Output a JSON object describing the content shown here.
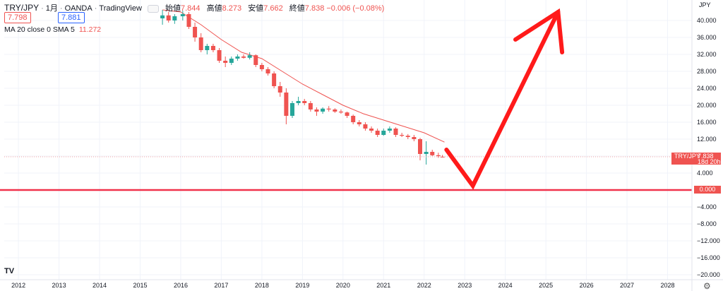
{
  "header": {
    "symbol": "TRY/JPY",
    "interval": "1月",
    "source": "OANDA",
    "platform": "TradingView",
    "open_label": "始値",
    "open_value": "7.844",
    "high_label": "高値",
    "high_value": "8.273",
    "low_label": "安値",
    "low_value": "7.662",
    "close_label": "終値",
    "close_value": "7.838",
    "change": "−0.006 (−0.08%)"
  },
  "quote": {
    "sell": "7.798",
    "buy": "7.881"
  },
  "indicator": {
    "label": "MA 20 close 0 SMA 5",
    "value": "11.272"
  },
  "current_tag": {
    "symbol": "TRY/JPY",
    "price": "7.838",
    "countdown": "18d 20h"
  },
  "zero_tag": "0.000",
  "logo_text": "TV",
  "colors": {
    "up": "#26a69a",
    "down": "#ef5350",
    "ma": "#ef5350",
    "arrow": "#ff1a1a",
    "zero": "#f0324b"
  },
  "chart_data": {
    "type": "candlestick",
    "unit": "JPY",
    "ylim": [
      -21,
      44
    ],
    "y_ticks": [
      40,
      36,
      32,
      28,
      24,
      20,
      16,
      12,
      8,
      4,
      0,
      -4,
      -8,
      -12,
      -16,
      -20
    ],
    "y_tick_labels": [
      "40.000",
      "36.000",
      "32.000",
      "28.000",
      "24.000",
      "20.000",
      "16.000",
      "12.000",
      "8.000",
      "4.000",
      "0.000",
      "−4.000",
      "−8.000",
      "−12.000",
      "−16.000",
      "−20.000"
    ],
    "xlim": [
      2011.65,
      2028.6
    ],
    "x_ticks": [
      2012,
      2013,
      2014,
      2015,
      2016,
      2017,
      2018,
      2019,
      2020,
      2021,
      2022,
      2023,
      2024,
      2025,
      2026,
      2027,
      2028
    ],
    "x_tick_labels": [
      "2012",
      "2013",
      "2014",
      "2015",
      "2016",
      "2017",
      "2018",
      "2019",
      "2020",
      "2021",
      "2022",
      "2023",
      "2024",
      "2025",
      "2026",
      "2027",
      "2028"
    ],
    "price_line": 7.838,
    "zero_line": 0,
    "ma_line": [
      [
        2015.55,
        42.5
      ],
      [
        2016.0,
        42.0
      ],
      [
        2016.5,
        39.0
      ],
      [
        2017.0,
        35.5
      ],
      [
        2017.5,
        32.5
      ],
      [
        2018.0,
        31.0
      ],
      [
        2018.5,
        28.0
      ],
      [
        2019.0,
        25.0
      ],
      [
        2019.5,
        22.5
      ],
      [
        2020.0,
        20.0
      ],
      [
        2020.5,
        18.0
      ],
      [
        2021.0,
        16.5
      ],
      [
        2021.5,
        15.0
      ],
      [
        2022.0,
        13.5
      ],
      [
        2022.5,
        11.3
      ]
    ],
    "arrow": [
      [
        2022.55,
        9.5
      ],
      [
        2023.2,
        1.0
      ],
      [
        2025.3,
        42.0
      ],
      [
        2025.4,
        32.5
      ]
    ],
    "candles": [
      {
        "t": 2015.55,
        "o": 40.5,
        "h": 42.5,
        "l": 39.0,
        "c": 41.2
      },
      {
        "t": 2015.7,
        "o": 41.2,
        "h": 42.0,
        "l": 39.5,
        "c": 40.0
      },
      {
        "t": 2015.85,
        "o": 40.0,
        "h": 41.5,
        "l": 39.2,
        "c": 41.0
      },
      {
        "t": 2016.05,
        "o": 41.0,
        "h": 42.3,
        "l": 40.0,
        "c": 41.5
      },
      {
        "t": 2016.2,
        "o": 41.5,
        "h": 42.0,
        "l": 38.0,
        "c": 38.5
      },
      {
        "t": 2016.35,
        "o": 38.5,
        "h": 39.5,
        "l": 35.0,
        "c": 36.0
      },
      {
        "t": 2016.5,
        "o": 36.0,
        "h": 37.0,
        "l": 32.5,
        "c": 33.0
      },
      {
        "t": 2016.65,
        "o": 33.0,
        "h": 34.5,
        "l": 32.0,
        "c": 34.0
      },
      {
        "t": 2016.8,
        "o": 34.0,
        "h": 34.5,
        "l": 32.5,
        "c": 33.0
      },
      {
        "t": 2016.95,
        "o": 33.0,
        "h": 33.5,
        "l": 30.0,
        "c": 30.5
      },
      {
        "t": 2017.1,
        "o": 30.5,
        "h": 31.5,
        "l": 29.0,
        "c": 30.0
      },
      {
        "t": 2017.25,
        "o": 30.0,
        "h": 31.5,
        "l": 29.5,
        "c": 31.0
      },
      {
        "t": 2017.4,
        "o": 31.0,
        "h": 32.0,
        "l": 30.5,
        "c": 31.5
      },
      {
        "t": 2017.55,
        "o": 31.5,
        "h": 32.0,
        "l": 31.0,
        "c": 31.2
      },
      {
        "t": 2017.7,
        "o": 31.2,
        "h": 32.5,
        "l": 30.8,
        "c": 31.8
      },
      {
        "t": 2017.85,
        "o": 31.8,
        "h": 32.0,
        "l": 29.0,
        "c": 29.5
      },
      {
        "t": 2018.0,
        "o": 29.5,
        "h": 30.0,
        "l": 28.0,
        "c": 28.5
      },
      {
        "t": 2018.15,
        "o": 28.5,
        "h": 29.0,
        "l": 27.0,
        "c": 27.5
      },
      {
        "t": 2018.3,
        "o": 27.5,
        "h": 28.0,
        "l": 24.0,
        "c": 24.5
      },
      {
        "t": 2018.45,
        "o": 24.5,
        "h": 25.5,
        "l": 22.0,
        "c": 23.0
      },
      {
        "t": 2018.6,
        "o": 23.0,
        "h": 24.0,
        "l": 15.5,
        "c": 17.5
      },
      {
        "t": 2018.75,
        "o": 17.5,
        "h": 21.0,
        "l": 17.0,
        "c": 20.5
      },
      {
        "t": 2018.9,
        "o": 20.5,
        "h": 22.0,
        "l": 20.0,
        "c": 21.0
      },
      {
        "t": 2019.05,
        "o": 21.0,
        "h": 21.5,
        "l": 20.0,
        "c": 20.5
      },
      {
        "t": 2019.2,
        "o": 20.5,
        "h": 21.0,
        "l": 18.5,
        "c": 19.0
      },
      {
        "t": 2019.35,
        "o": 19.0,
        "h": 19.5,
        "l": 17.5,
        "c": 18.5
      },
      {
        "t": 2019.5,
        "o": 18.5,
        "h": 19.5,
        "l": 18.0,
        "c": 19.2
      },
      {
        "t": 2019.65,
        "o": 19.2,
        "h": 19.8,
        "l": 18.5,
        "c": 19.0
      },
      {
        "t": 2019.8,
        "o": 19.0,
        "h": 19.3,
        "l": 18.2,
        "c": 18.5
      },
      {
        "t": 2019.95,
        "o": 18.5,
        "h": 19.0,
        "l": 18.0,
        "c": 18.3
      },
      {
        "t": 2020.1,
        "o": 18.3,
        "h": 18.5,
        "l": 17.0,
        "c": 17.5
      },
      {
        "t": 2020.25,
        "o": 17.5,
        "h": 17.8,
        "l": 15.5,
        "c": 16.0
      },
      {
        "t": 2020.4,
        "o": 16.0,
        "h": 16.5,
        "l": 15.0,
        "c": 15.5
      },
      {
        "t": 2020.55,
        "o": 15.5,
        "h": 16.0,
        "l": 14.0,
        "c": 14.5
      },
      {
        "t": 2020.7,
        "o": 14.5,
        "h": 15.0,
        "l": 13.5,
        "c": 14.0
      },
      {
        "t": 2020.85,
        "o": 14.0,
        "h": 14.5,
        "l": 12.5,
        "c": 13.0
      },
      {
        "t": 2021.0,
        "o": 13.0,
        "h": 14.5,
        "l": 12.8,
        "c": 14.0
      },
      {
        "t": 2021.15,
        "o": 14.0,
        "h": 15.0,
        "l": 13.5,
        "c": 14.5
      },
      {
        "t": 2021.3,
        "o": 14.5,
        "h": 14.8,
        "l": 12.5,
        "c": 13.0
      },
      {
        "t": 2021.45,
        "o": 13.0,
        "h": 13.5,
        "l": 12.5,
        "c": 12.8
      },
      {
        "t": 2021.6,
        "o": 12.8,
        "h": 13.2,
        "l": 12.0,
        "c": 12.5
      },
      {
        "t": 2021.75,
        "o": 12.5,
        "h": 13.0,
        "l": 11.5,
        "c": 12.0
      },
      {
        "t": 2021.9,
        "o": 12.0,
        "h": 12.3,
        "l": 7.0,
        "c": 8.5
      },
      {
        "t": 2022.05,
        "o": 8.5,
        "h": 11.5,
        "l": 6.0,
        "c": 9.0
      },
      {
        "t": 2022.2,
        "o": 9.0,
        "h": 9.5,
        "l": 8.0,
        "c": 8.2
      },
      {
        "t": 2022.35,
        "o": 8.2,
        "h": 8.8,
        "l": 7.6,
        "c": 8.0
      },
      {
        "t": 2022.45,
        "o": 7.844,
        "h": 8.273,
        "l": 7.662,
        "c": 7.838
      }
    ]
  }
}
